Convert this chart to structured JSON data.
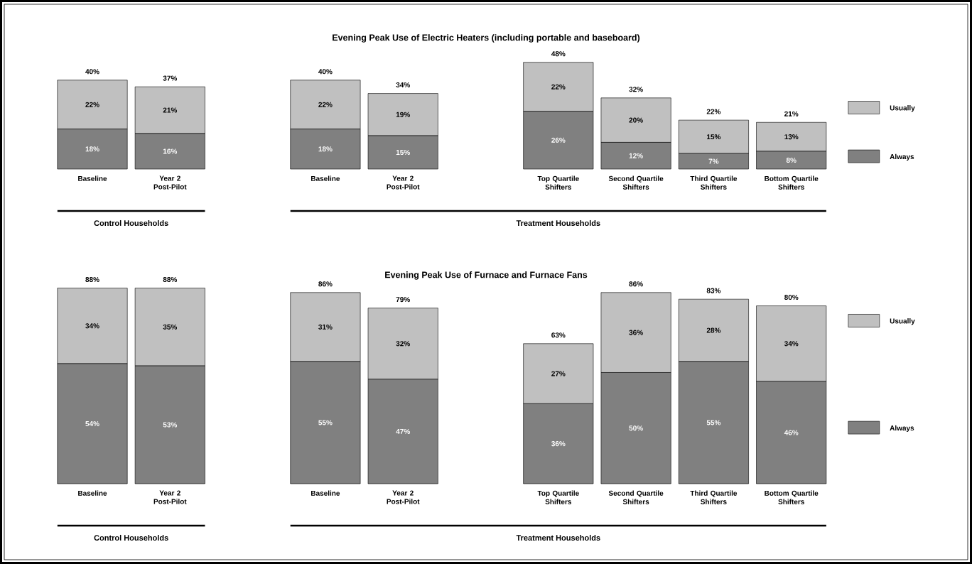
{
  "chart_data": [
    {
      "type": "bar",
      "stacked": true,
      "title": "Evening Peak Use of Electric Heaters (including portable and baseboard)",
      "categories": [
        "Baseline",
        "Year 2 Post-Pilot",
        null,
        "Baseline",
        "Year 2 Post-Pilot",
        null,
        "Top Quartile Shifters",
        "Second Quartile Shifters",
        "Third Quartile Shifters",
        "Bottom Quartile Shifters"
      ],
      "legend": "right",
      "series": [
        {
          "name": "Always",
          "color": "#808080",
          "values": [
            18,
            16,
            null,
            18,
            15,
            null,
            26,
            12,
            7,
            8
          ],
          "value_labels": [
            "18%",
            "16%",
            null,
            "18%",
            "15%",
            null,
            "26%",
            "12%",
            "7%",
            "8%"
          ]
        },
        {
          "name": "Usually",
          "color": "#c0c0c0",
          "values": [
            22,
            21,
            null,
            22,
            19,
            null,
            22,
            20,
            15,
            13
          ],
          "value_labels": [
            "22%",
            "21%",
            null,
            "22%",
            "19%",
            null,
            "22%",
            "20%",
            "15%",
            "13%"
          ]
        }
      ],
      "totals": [
        "40%",
        "37%",
        null,
        "40%",
        "34%",
        null,
        "48%",
        "32%",
        "22%",
        "21%"
      ],
      "annotations": [
        "Control Households",
        "Treatment Households"
      ]
    },
    {
      "type": "bar",
      "stacked": true,
      "title": "Evening Peak Use of Furnace and Furnace Fans",
      "categories": [
        "Baseline",
        "Year 2 Post-Pilot",
        null,
        "Baseline",
        "Year 2 Post-Pilot",
        null,
        "Top Quartile Shifters",
        "Second Quartile Shifters",
        "Third Quartile Shifters",
        "Bottom Quartile Shifters"
      ],
      "legend": "right",
      "series": [
        {
          "name": "Always",
          "color": "#808080",
          "values": [
            54,
            53,
            null,
            55,
            47,
            null,
            36,
            50,
            55,
            46
          ],
          "value_labels": [
            "54%",
            "53%",
            null,
            "55%",
            "47%",
            null,
            "36%",
            "50%",
            "55%",
            "46%"
          ]
        },
        {
          "name": "Usually",
          "color": "#c0c0c0",
          "values": [
            34,
            35,
            null,
            31,
            32,
            null,
            27,
            36,
            28,
            34
          ],
          "value_labels": [
            "34%",
            "35%",
            null,
            "31%",
            "32%",
            null,
            "27%",
            "36%",
            "28%",
            "34%"
          ]
        }
      ],
      "totals": [
        "88%",
        "88%",
        null,
        "86%",
        "79%",
        null,
        "63%",
        "86%",
        "83%",
        "80%"
      ],
      "annotations": [
        "Control Households",
        "Treatment Households"
      ]
    }
  ]
}
